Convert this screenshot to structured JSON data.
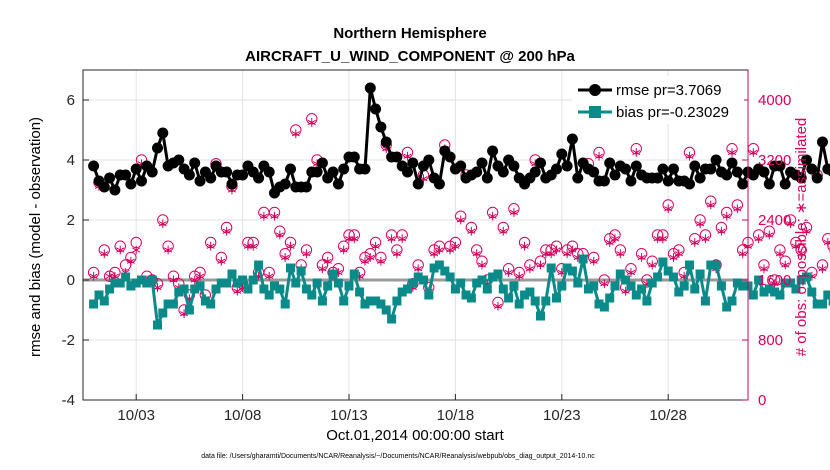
{
  "chart_data": {
    "type": "line",
    "title": "Northern Hemisphere",
    "subtitle": "AIRCRAFT_U_WIND_COMPONENT @ 200 hPa",
    "xlabel": "Oct.01,2014 00:00:00 start",
    "ylabel_left": "rmse and bias (model - observation)",
    "ylabel_right": "# of obs: o=possible; ∗=assimilated",
    "footnote": "data file: /Users/gharamti/Documents/NCAR/Reanalysis/~/Documents/NCAR/Reanalysis/webpub/obs_diag_output_2014-10.nc",
    "x_range": [
      0.5,
      31.75
    ],
    "x_ticks": [
      3,
      8,
      13,
      18,
      23,
      28
    ],
    "x_tick_labels": [
      "10/03",
      "10/08",
      "10/13",
      "10/18",
      "10/23",
      "10/28"
    ],
    "y_left_range": [
      -4,
      7
    ],
    "y_left_ticks": [
      -4,
      -2,
      0,
      2,
      4,
      6
    ],
    "y_right_range": [
      0,
      4400
    ],
    "y_right_ticks": [
      0,
      800,
      1600,
      2400,
      3200,
      4000
    ],
    "grid": true,
    "legend_location": "top-right",
    "colors": {
      "rmse": "#000000",
      "bias": "#0b8a8a",
      "obs": "#d6005f",
      "zero_line": "#9a9a9a"
    },
    "series": [
      {
        "name": "rmse pr=3.7069",
        "axis": "left",
        "marker": "circle",
        "values": [
          3.8,
          3.3,
          3.1,
          3.4,
          3.0,
          3.5,
          3.5,
          3.2,
          3.7,
          3.3,
          3.8,
          3.6,
          4.4,
          4.9,
          3.8,
          3.9,
          4.0,
          3.7,
          3.5,
          3.9,
          3.3,
          3.6,
          3.4,
          3.8,
          3.6,
          3.6,
          3.2,
          3.5,
          3.5,
          3.8,
          3.6,
          3.4,
          3.8,
          3.6,
          2.9,
          3.1,
          3.2,
          3.7,
          3.1,
          3.1,
          3.1,
          3.6,
          3.6,
          3.9,
          3.4,
          3.6,
          3.2,
          3.7,
          4.1,
          4.1,
          3.7,
          3.7,
          6.4,
          5.7,
          5.1,
          4.6,
          4.1,
          4.1,
          3.8,
          3.6,
          3.9,
          3.2,
          3.8,
          4.0,
          3.4,
          3.2,
          4.3,
          4.1,
          3.7,
          3.8,
          3.4,
          3.5,
          3.6,
          3.9,
          3.4,
          4.3,
          3.8,
          3.6,
          4.0,
          3.8,
          3.4,
          3.2,
          3.4,
          3.6,
          3.9,
          3.4,
          3.5,
          3.7,
          4.2,
          3.8,
          4.7,
          3.4,
          3.9,
          3.7,
          3.6,
          3.3,
          3.3,
          3.9,
          3.5,
          3.8,
          3.7,
          3.3,
          3.8,
          3.5,
          3.4,
          3.4,
          3.4,
          3.7,
          3.3,
          3.7,
          3.3,
          3.3,
          3.2,
          3.8,
          3.4,
          3.7,
          3.7,
          4.0,
          3.6,
          3.5,
          3.9,
          3.6,
          3.2,
          3.6,
          3.5,
          3.7,
          3.6,
          3.2,
          3.8,
          3.8,
          3.2,
          3.6,
          3.5,
          3.4,
          4.0,
          3.7,
          3.4,
          4.6,
          3.7,
          3.6,
          3.9,
          3.8,
          3.8,
          3.2
        ]
      },
      {
        "name": "bias pr=-0.23029",
        "axis": "left",
        "marker": "square",
        "values": [
          -0.8,
          -0.5,
          -0.7,
          -0.3,
          -0.1,
          -0.1,
          0.1,
          -0.2,
          -0.1,
          0.0,
          -0.1,
          0.0,
          -1.5,
          -1.1,
          -0.8,
          -0.8,
          -0.4,
          -0.3,
          -1.0,
          -0.3,
          -0.2,
          -0.7,
          -0.8,
          -0.3,
          -0.1,
          -0.1,
          0.2,
          -0.1,
          0.0,
          -0.3,
          0.0,
          0.5,
          -0.3,
          -0.5,
          -0.2,
          -0.3,
          -0.8,
          0.4,
          -0.1,
          0.3,
          -0.3,
          -0.5,
          -0.1,
          -0.7,
          -0.2,
          0.2,
          -0.1,
          -0.7,
          -0.2,
          0.2,
          -0.4,
          -0.8,
          -0.7,
          -0.7,
          -0.8,
          -1.0,
          -1.3,
          -0.7,
          -0.4,
          -0.3,
          -0.1,
          0.1,
          0.0,
          -0.5,
          0.4,
          0.5,
          0.3,
          0.1,
          -0.3,
          -0.1,
          -0.5,
          -0.6,
          -0.1,
          0.0,
          -0.3,
          0.1,
          0.2,
          -0.3,
          -0.6,
          -0.2,
          -0.8,
          -0.5,
          -0.4,
          -0.7,
          -1.2,
          -0.7,
          0.4,
          -0.6,
          -0.2,
          0.4,
          0.3,
          -0.1,
          0.7,
          -0.3,
          -0.2,
          -0.8,
          -0.9,
          -0.6,
          -0.2,
          0.2,
          0.0,
          -0.2,
          -0.5,
          -0.3,
          -0.7,
          -0.1,
          0.1,
          0.6,
          0.3,
          0.1,
          -0.4,
          -0.2,
          0.5,
          -0.3,
          0.2,
          -0.7,
          0.5,
          0.5,
          -0.2,
          -0.9,
          -0.7,
          -0.1,
          -0.2,
          -0.2,
          -0.5,
          0.0,
          -0.4,
          -0.3,
          -0.4,
          -0.5,
          -0.1,
          -0.1,
          -0.3,
          0.0,
          0.1,
          -0.4,
          -0.8,
          -0.8,
          -0.5,
          -0.7,
          -0.2,
          -0.9,
          -0.9
        ]
      },
      {
        "name": "obs possible",
        "axis": "right",
        "marker": "circle-open",
        "values": [
          1700,
          2900,
          2000,
          1650,
          1700,
          2050,
          1800,
          1900,
          2100,
          3200,
          1650,
          1600,
          1550,
          2400,
          2050,
          1650,
          1550,
          1200,
          1400,
          1650,
          1700,
          1400,
          2100,
          3150,
          1900,
          2300,
          2850,
          1500,
          1550,
          2100,
          2100,
          1700,
          2500,
          1700,
          2500,
          2250,
          1950,
          2100,
          3600,
          1800,
          2000,
          3750,
          3200,
          1800,
          1900,
          1700,
          1750,
          2050,
          2200,
          2200,
          1700,
          1900,
          1950,
          2100,
          1900,
          3400,
          2200,
          2000,
          2200,
          3300,
          1550,
          1800,
          3000,
          1500,
          2000,
          2050,
          3400,
          2050,
          2100,
          2450,
          3000,
          2300,
          2000,
          1850,
          1600,
          2500,
          1300,
          2300,
          1750,
          2550,
          1700,
          2100,
          1800,
          3200,
          1850,
          2000,
          2000,
          2050,
          1750,
          2000,
          2050,
          1950,
          1950,
          3150,
          1900,
          3300,
          1600,
          2150,
          2200,
          2000,
          1500,
          1750,
          3350,
          1950,
          1600,
          1850,
          2200,
          2200,
          2600,
          1950,
          2000,
          1700,
          3300,
          2150,
          2400,
          2200,
          2650,
          1800,
          2300,
          2500,
          3350,
          2600,
          2000,
          2100,
          3350,
          2200,
          1800,
          2250,
          1600,
          2000,
          1850,
          2400,
          2100,
          2000,
          2300,
          1700,
          3000,
          1800,
          2150,
          2050,
          3250,
          1650,
          1400,
          1750,
          2250,
          1700,
          2850,
          2100,
          1850,
          3100,
          1950,
          1800,
          2200,
          0
        ]
      },
      {
        "name": "obs assimilated",
        "axis": "right",
        "marker": "asterisk",
        "values": [
          1650,
          2850,
          1950,
          1650,
          1650,
          2000,
          1700,
          1850,
          2000,
          3150,
          1600,
          1550,
          1500,
          2350,
          2000,
          1600,
          1500,
          1150,
          1350,
          1600,
          1650,
          1350,
          2050,
          3100,
          1850,
          2250,
          2800,
          1450,
          1500,
          2050,
          2050,
          1650,
          2450,
          1650,
          2450,
          2200,
          1900,
          2050,
          3550,
          1750,
          1950,
          3700,
          3150,
          1750,
          1850,
          1650,
          1700,
          2000,
          2150,
          2150,
          1650,
          1850,
          1900,
          2050,
          1850,
          3350,
          2150,
          1950,
          2150,
          3250,
          1500,
          1750,
          2950,
          1450,
          1950,
          2000,
          3350,
          2000,
          2050,
          2400,
          2950,
          2250,
          1950,
          1800,
          1550,
          2450,
          1250,
          2250,
          1700,
          2500,
          1650,
          2050,
          1750,
          3150,
          1800,
          1950,
          1950,
          2000,
          1700,
          1950,
          2000,
          1900,
          1900,
          3100,
          1850,
          3250,
          1550,
          2100,
          2150,
          1950,
          1450,
          1700,
          3300,
          1900,
          1550,
          1800,
          2150,
          2150,
          2550,
          1900,
          1950,
          1650,
          3250,
          2100,
          2350,
          2150,
          2600,
          1750,
          2250,
          2450,
          3300,
          2550,
          1950,
          2050,
          3300,
          2150,
          1750,
          2200,
          1550,
          1950,
          1800,
          2350,
          2050,
          1950,
          2250,
          1650,
          2950,
          1750,
          2100,
          2000,
          3200,
          1600,
          1350,
          1700,
          2200,
          1650,
          2800,
          2050,
          1800,
          3050,
          1900,
          1750,
          2150,
          0
        ]
      }
    ]
  }
}
